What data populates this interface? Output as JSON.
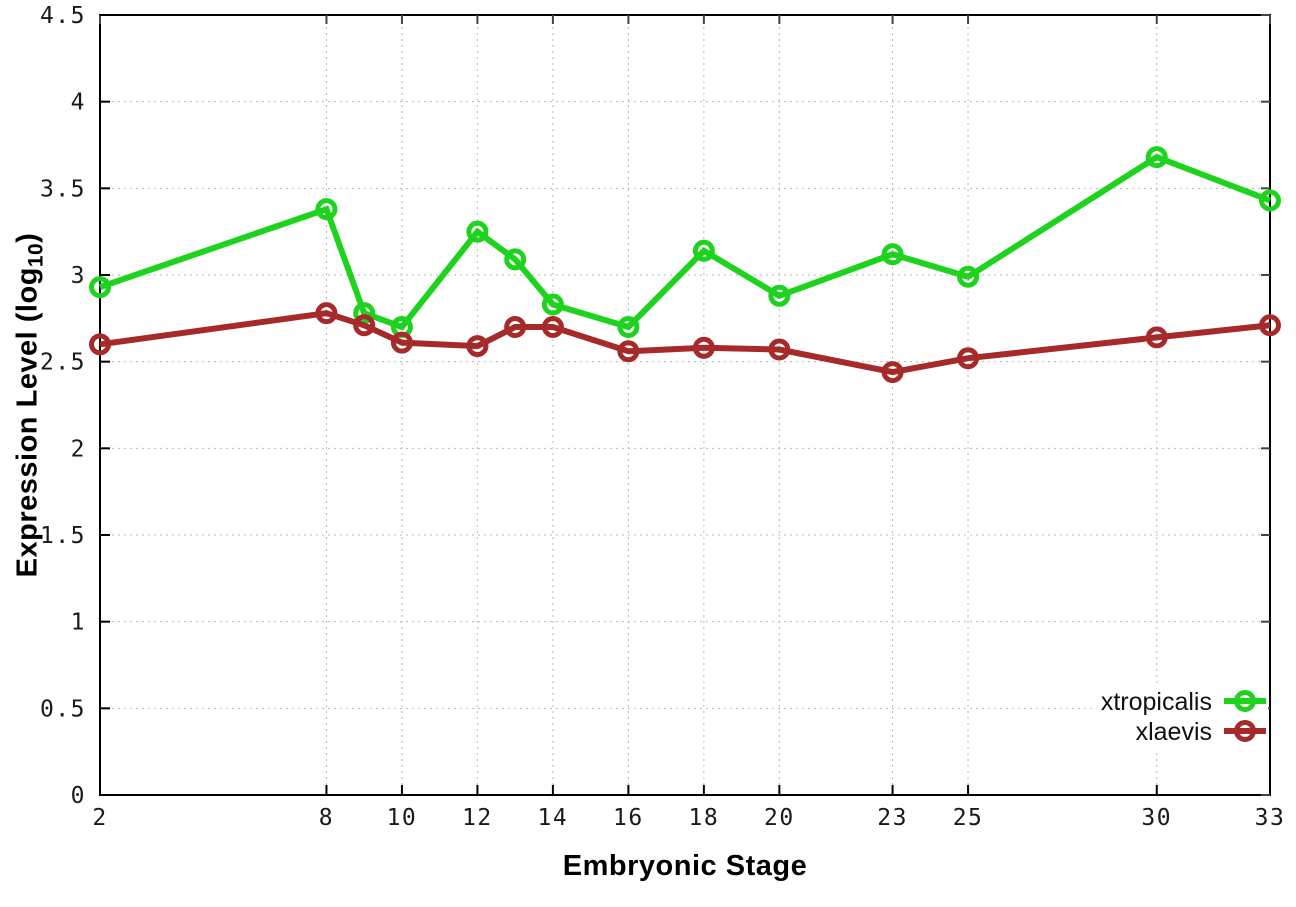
{
  "page": {
    "background": "#ffffff"
  },
  "chart_data": {
    "type": "line",
    "title": "",
    "xlabel": "Embryonic Stage",
    "ylabel": "Expression Level (log10)",
    "ylabel_parts": {
      "prefix": "Expression Level (log",
      "sub": "10",
      "suffix": ")"
    },
    "x": [
      2,
      8,
      9,
      10,
      12,
      13,
      14,
      16,
      18,
      20,
      23,
      25,
      30,
      33
    ],
    "x_ticks": [
      2,
      8,
      10,
      12,
      14,
      16,
      18,
      20,
      23,
      25,
      30,
      33
    ],
    "x_tick_labels": [
      "2",
      "8",
      "10",
      "12",
      "14",
      "16",
      "18",
      "20",
      "23",
      "25",
      "30",
      "33"
    ],
    "y_ticks": [
      0,
      0.5,
      1,
      1.5,
      2,
      2.5,
      3,
      3.5,
      4,
      4.5
    ],
    "y_tick_labels": [
      "0",
      "0.5",
      "1",
      "1.5",
      "2",
      "2.5",
      "3",
      "3.5",
      "4",
      "4.5"
    ],
    "xlim": [
      2,
      33
    ],
    "ylim": [
      0,
      4.5
    ],
    "grid": true,
    "legend_position": "bottom-right",
    "series": [
      {
        "name": "xtropicalis",
        "color": "#1dd31d",
        "values": [
          2.93,
          3.38,
          2.78,
          2.7,
          3.25,
          3.09,
          2.83,
          2.7,
          3.14,
          2.88,
          3.12,
          2.99,
          3.68,
          3.43
        ]
      },
      {
        "name": "xlaevis",
        "color": "#a62a2a",
        "values": [
          2.6,
          2.78,
          2.71,
          2.61,
          2.59,
          2.7,
          2.7,
          2.56,
          2.58,
          2.57,
          2.44,
          2.52,
          2.64,
          2.71
        ]
      }
    ],
    "axis_color": "#000000",
    "grid_color": "#b8b8b8",
    "mirror_tick_color": "#444444",
    "tick_label_color": "#1a1a1a"
  }
}
